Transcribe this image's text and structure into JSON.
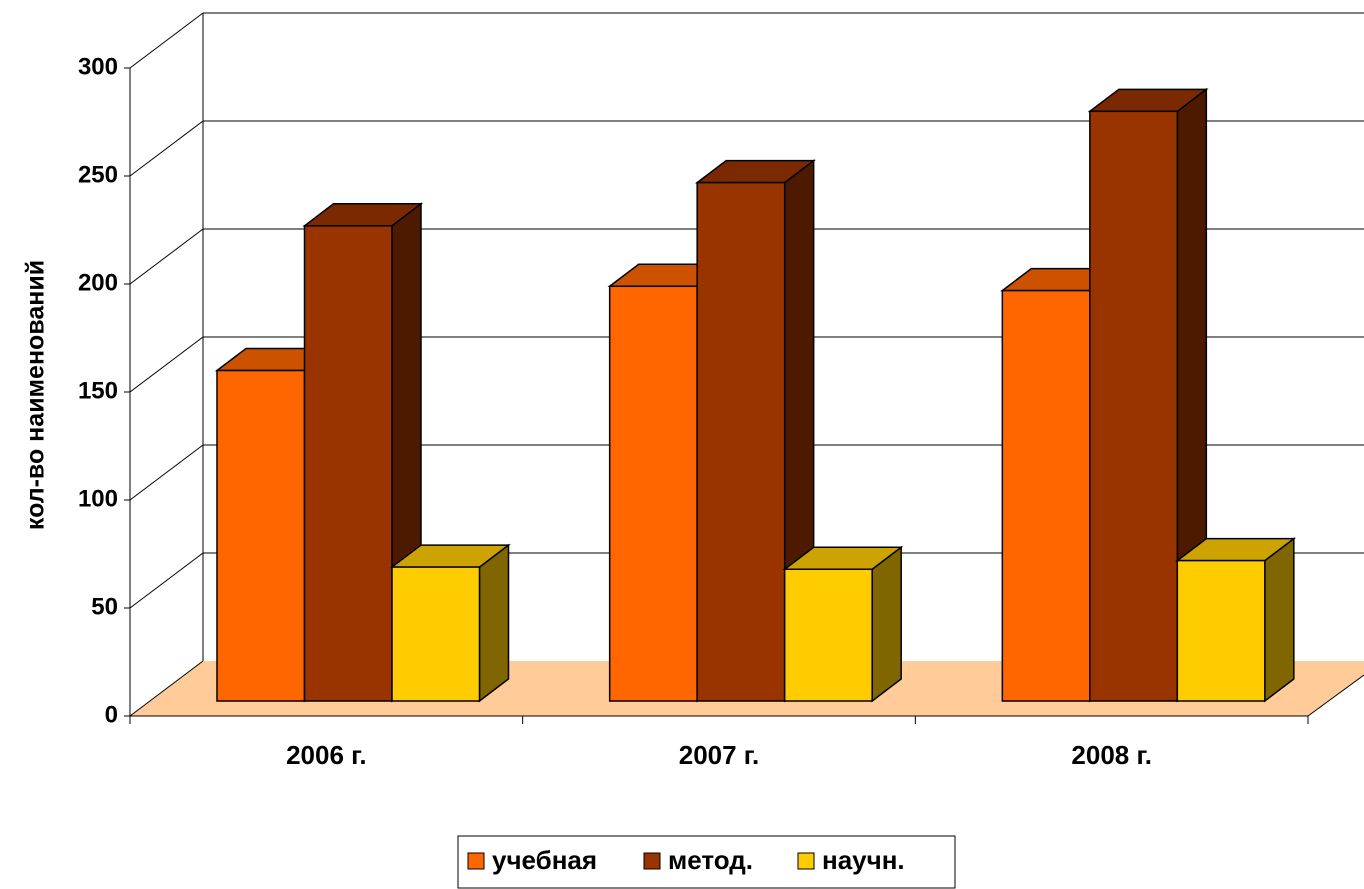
{
  "chart_data": {
    "type": "bar3d",
    "y_label": "кол-во наименований",
    "categories": [
      "2006 г.",
      "2007 г.",
      "2008 г."
    ],
    "series": [
      {
        "name": "учебная",
        "color": "#ff6600",
        "values": [
          153,
          192,
          190
        ]
      },
      {
        "name": "метод.",
        "color": "#993300",
        "values": [
          220,
          240,
          273
        ]
      },
      {
        "name": "научн.",
        "color": "#ffcc00",
        "values": [
          62,
          61,
          65
        ]
      }
    ],
    "ylim": [
      0,
      300
    ],
    "yticks": [
      0,
      50,
      100,
      150,
      200,
      250,
      300
    ],
    "grid": true,
    "legend": "bottom"
  }
}
